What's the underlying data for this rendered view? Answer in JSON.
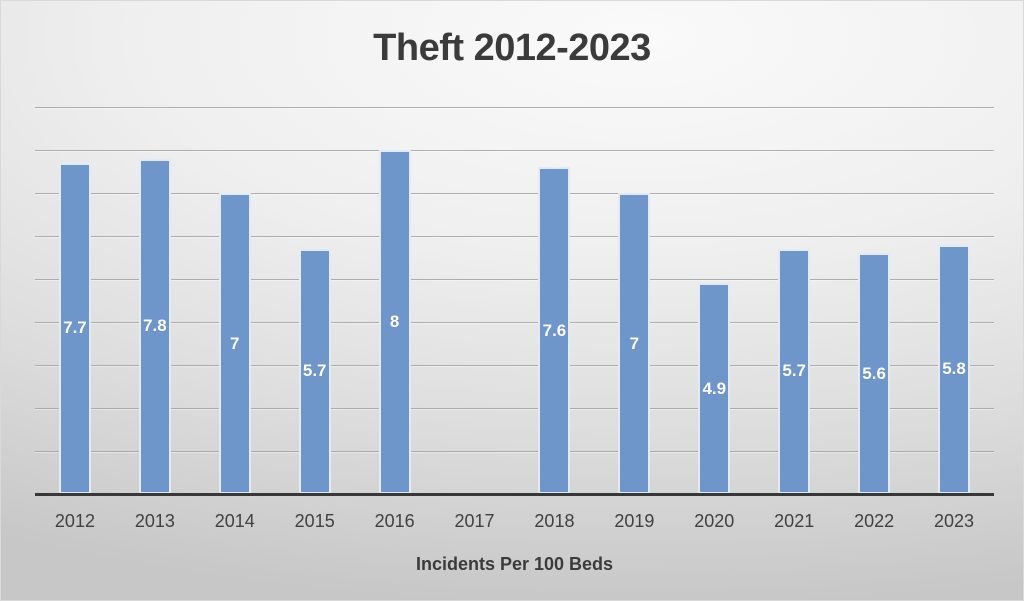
{
  "chart_data": {
    "type": "bar",
    "title": "Theft 2012-2023",
    "xlabel": "Incidents Per 100 Beds",
    "ylabel": "",
    "categories": [
      "2012",
      "2013",
      "2014",
      "2015",
      "2016",
      "2017",
      "2018",
      "2019",
      "2020",
      "2021",
      "2022",
      "2023"
    ],
    "values": [
      7.7,
      7.8,
      7,
      5.7,
      8,
      null,
      7.6,
      7,
      4.9,
      5.7,
      5.6,
      5.8
    ],
    "data_labels": [
      "7.7",
      "7.8",
      "7",
      "5.7",
      "8",
      "",
      "7.6",
      "7",
      "4.9",
      "5.7",
      "5.6",
      "5.8"
    ],
    "ylim": [
      0,
      9.3
    ],
    "gridline_values": [
      1,
      2,
      3,
      4,
      5,
      6,
      7,
      8,
      9
    ],
    "grid": true,
    "legend": false,
    "colors": {
      "bar_fill": "#6f96cb",
      "bar_border": "#e9f0f8",
      "data_label": "#ffffff",
      "gridline": "#a3a3a3",
      "axis_line": "#383838",
      "title_text": "#3b3b3b",
      "tick_text": "#414141"
    }
  }
}
